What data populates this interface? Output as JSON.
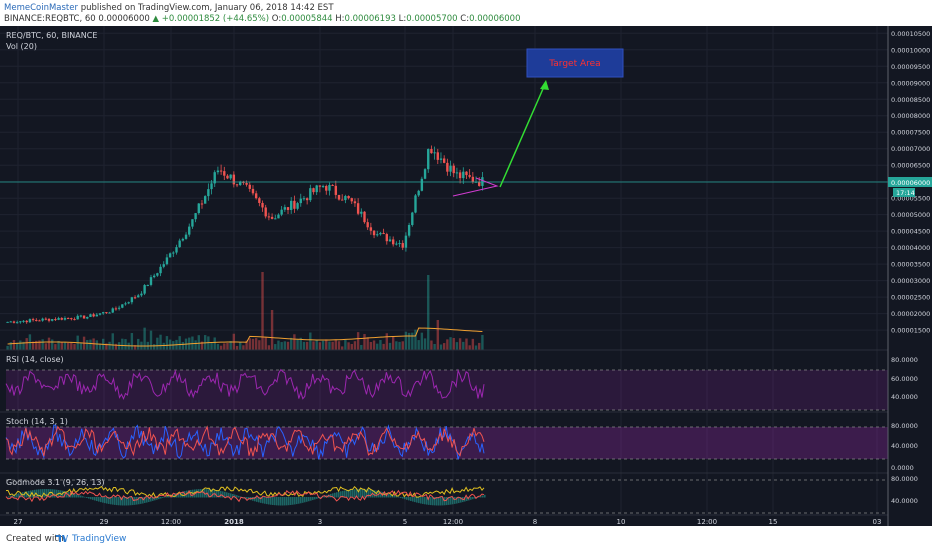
{
  "header": {
    "author": "MemeCoinMaster",
    "published": " published on TradingView.com, January 06, 2018 14:42 EST",
    "symbol": "BINANCE:REQBTC, 60",
    "price": " 0.00006000 ",
    "change": "▲ +0.00001852 (+44.65%)",
    "o_label": " O:",
    "o_value": "0.00005844",
    "h_label": " H:",
    "h_value": "0.00006193",
    "l_label": " L:",
    "l_value": "0.00005700",
    "c_label": " C:",
    "c_value": "0.00006000"
  },
  "panes": {
    "main_title": "REQ/BTC, 60, BINANCE",
    "vol_title": "Vol (20)",
    "rsi_title": "RSI (14, close)",
    "stoch_title": "Stoch (14, 3, 1)",
    "godmode_title": "Godmode 3.1 (9, 26, 13)"
  },
  "annotation": {
    "target_label": "Target Area"
  },
  "price_axis": [
    "0.00010500",
    "0.00010000",
    "0.00009500",
    "0.00009000",
    "0.00008500",
    "0.00008000",
    "0.00007500",
    "0.00007000",
    "0.00006500",
    "0.00006000",
    "0.00005500",
    "0.00005000",
    "0.00004500",
    "0.00004000",
    "0.00003500",
    "0.00003000",
    "0.00002500",
    "0.00002000",
    "0.00001500"
  ],
  "last_price_tag": "0.00006000",
  "countdown_tag": "17:14",
  "rsi_axis": [
    "80.0000",
    "60.0000",
    "40.0000"
  ],
  "stoch_axis": [
    "80.0000",
    "40.0000",
    "0.0000"
  ],
  "godmode_axis": [
    "80.0000",
    "40.0000"
  ],
  "time_axis": [
    "27",
    "29",
    "12:00",
    "2018",
    "3",
    "5",
    "12:00",
    "8",
    "10",
    "12:00",
    "15",
    "03"
  ],
  "footer": {
    "created_with": "Created with",
    "brand": "TradingView"
  },
  "colors": {
    "background": "#131722",
    "up": "#26a69a",
    "down": "#ef5350",
    "rsi": "#9c27b0",
    "stoch_k": "#2962ff",
    "stoch_d": "#ef5350",
    "target": "#1e3c99",
    "arrow": "#33dd33",
    "triangle": "#d23cd2"
  },
  "chart_data": {
    "type": "line",
    "title": "REQ/BTC, 60, BINANCE",
    "x": [
      "27",
      "29",
      "12:00",
      "2018",
      "3",
      "5",
      "12:00",
      "8",
      "10",
      "12:00",
      "15",
      "03"
    ],
    "price_path_approx": [
      1.75e-05,
      1.8e-05,
      1.85e-05,
      1.9e-05,
      2.1e-05,
      2.6e-05,
      3.6e-05,
      4.8e-05,
      6.4e-05,
      5.8e-05,
      4.9e-05,
      5.4e-05,
      5.9e-05,
      5.4e-05,
      4.4e-05,
      4.1e-05,
      7.1e-05,
      6.2e-05,
      6e-05
    ],
    "last_price": 6e-05,
    "target_area": [
      9.25e-05,
      9.8e-05
    ],
    "ylim": [
      1.2e-05,
      0.000106
    ],
    "rsi_levels": [
      70,
      30
    ],
    "stoch_levels": [
      80,
      20
    ]
  }
}
